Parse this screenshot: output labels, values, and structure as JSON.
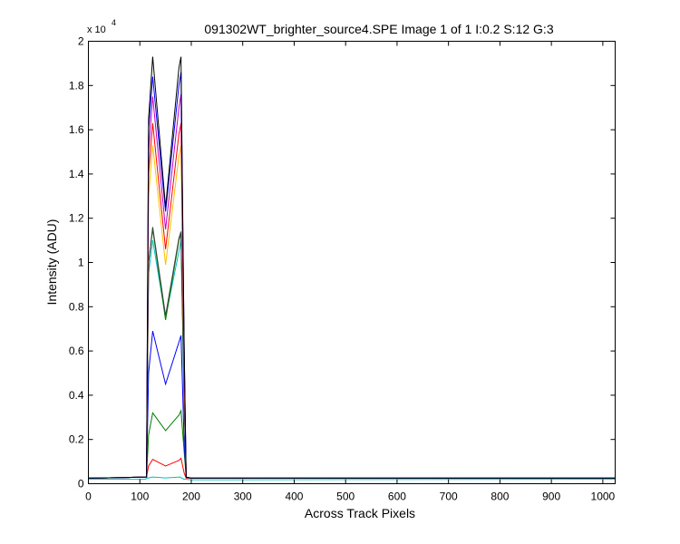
{
  "chart_data": {
    "type": "line",
    "title": "091302WT_brighter_source4.SPE  Image 1 of 1  I:0.2  S:12  G:3",
    "xlabel": "Across Track Pixels",
    "ylabel": "Intensity (ADU)",
    "y_multiplier": "x 10",
    "y_multiplier_exp": "4",
    "xlim": [
      0,
      1024
    ],
    "ylim": [
      0,
      20000
    ],
    "x_ticks": [
      0,
      100,
      200,
      300,
      400,
      500,
      600,
      700,
      800,
      900,
      1000
    ],
    "x_tick_labels": [
      "0",
      "100",
      "200",
      "300",
      "400",
      "500",
      "600",
      "700",
      "800",
      "900",
      "1000"
    ],
    "y_ticks": [
      0,
      2000,
      4000,
      6000,
      8000,
      10000,
      12000,
      14000,
      16000,
      18000,
      20000
    ],
    "y_tick_labels": [
      "0",
      "0.2",
      "0.4",
      "0.6",
      "0.8",
      "1",
      "1.2",
      "1.4",
      "1.6",
      "1.8",
      "2"
    ],
    "grid": false,
    "legend": "none",
    "series": [
      {
        "color": "#00bfbf",
        "x": [
          0,
          110,
          115,
          125,
          150,
          178,
          186,
          190,
          200,
          1024
        ],
        "y": [
          200,
          200,
          250,
          300,
          260,
          300,
          200,
          200,
          180,
          200
        ]
      },
      {
        "color": "#ff0000",
        "x": [
          0,
          113,
          117,
          125,
          150,
          176,
          180,
          186,
          190,
          200,
          1024
        ],
        "y": [
          250,
          300,
          800,
          1100,
          800,
          1050,
          1150,
          500,
          250,
          250,
          250
        ]
      },
      {
        "color": "#008000",
        "x": [
          0,
          113,
          117,
          125,
          150,
          176,
          180,
          186,
          190,
          200,
          1024
        ],
        "y": [
          250,
          300,
          2200,
          3200,
          2400,
          3100,
          3300,
          1500,
          300,
          250,
          250
        ]
      },
      {
        "color": "#0000ff",
        "x": [
          0,
          113,
          117,
          125,
          150,
          176,
          180,
          186,
          190,
          200,
          1024
        ],
        "y": [
          250,
          300,
          5000,
          6900,
          4500,
          6400,
          6700,
          2000,
          300,
          250,
          250
        ]
      },
      {
        "color": "#00bfbf",
        "x": [
          0,
          113,
          117,
          125,
          150,
          176,
          180,
          186,
          190,
          200,
          1024
        ],
        "y": [
          250,
          300,
          9500,
          11000,
          7500,
          10500,
          11000,
          3500,
          300,
          250,
          250
        ]
      },
      {
        "color": "#008000",
        "x": [
          0,
          113,
          117,
          125,
          150,
          176,
          180,
          186,
          190,
          200,
          1024
        ],
        "y": [
          250,
          300,
          10000,
          11500,
          7400,
          11000,
          11300,
          4000,
          300,
          250,
          250
        ]
      },
      {
        "color": "#404040",
        "x": [
          0,
          113,
          117,
          125,
          150,
          176,
          180,
          186,
          190,
          200,
          1024
        ],
        "y": [
          250,
          300,
          10000,
          11600,
          7600,
          11100,
          11400,
          4000,
          300,
          250,
          250
        ]
      },
      {
        "color": "#ffc000",
        "x": [
          0,
          113,
          117,
          125,
          150,
          176,
          180,
          186,
          190,
          200,
          1024
        ],
        "y": [
          250,
          300,
          13000,
          15300,
          9900,
          14800,
          15300,
          5000,
          300,
          250,
          250
        ]
      },
      {
        "color": "#ff0000",
        "x": [
          0,
          113,
          117,
          125,
          150,
          176,
          180,
          186,
          190,
          200,
          1024
        ],
        "y": [
          250,
          300,
          14000,
          16300,
          10600,
          15800,
          16300,
          5500,
          300,
          250,
          250
        ]
      },
      {
        "color": "#c000c0",
        "x": [
          0,
          113,
          117,
          125,
          150,
          176,
          180,
          186,
          190,
          200,
          1024
        ],
        "y": [
          250,
          300,
          15000,
          17500,
          11500,
          17000,
          17600,
          6000,
          300,
          250,
          250
        ]
      },
      {
        "color": "#0000ff",
        "x": [
          0,
          113,
          117,
          125,
          150,
          176,
          180,
          186,
          190,
          200,
          1024
        ],
        "y": [
          250,
          300,
          16000,
          18400,
          12300,
          18000,
          18600,
          6500,
          300,
          250,
          250
        ]
      },
      {
        "color": "#000000",
        "x": [
          0,
          113,
          117,
          125,
          150,
          176,
          180,
          186,
          190,
          200,
          1024
        ],
        "y": [
          250,
          300,
          16500,
          19300,
          12500,
          18800,
          19300,
          6500,
          300,
          250,
          250
        ]
      }
    ]
  }
}
